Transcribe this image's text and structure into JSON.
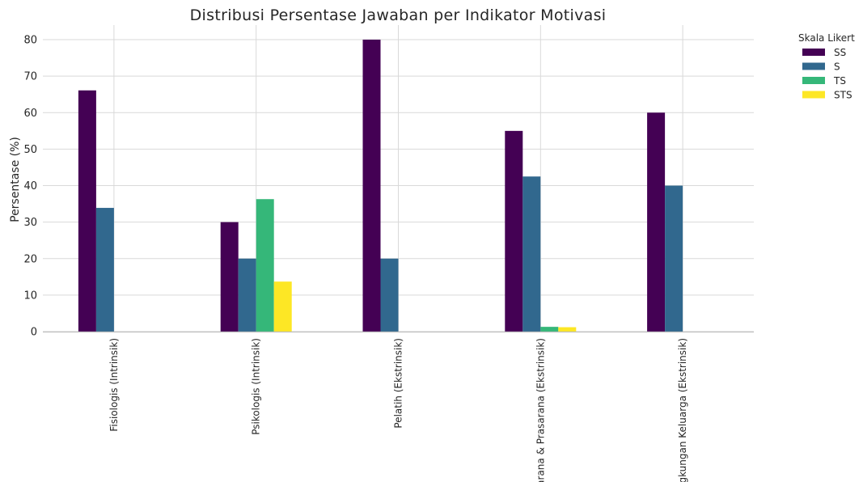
{
  "chart_data": {
    "type": "bar",
    "title": "Distribusi Persentase Jawaban per Indikator Motivasi",
    "xlabel": "",
    "ylabel": "Persentase (%)",
    "ylim": [
      0,
      84
    ],
    "yticks": [
      0,
      10,
      20,
      30,
      40,
      50,
      60,
      70,
      80
    ],
    "grid": true,
    "categories": [
      "Fisiologis (Intrinsik)",
      "Psikologis (Intrinsik)",
      "Pelatih (Ekstrinsik)",
      "Sarana & Prasarana (Ekstrinsik)",
      "Lingkungan Keluarga (Ekstrinsik)"
    ],
    "legend": {
      "title": "Skala Likert",
      "placement": "outside-top-right"
    },
    "series": [
      {
        "name": "SS",
        "color": "#440154",
        "values": [
          66.1,
          30.0,
          80.0,
          55.0,
          60.0
        ]
      },
      {
        "name": "S",
        "color": "#31688e",
        "values": [
          33.9,
          20.0,
          20.0,
          42.5,
          40.0
        ]
      },
      {
        "name": "TS",
        "color": "#35b779",
        "values": [
          0,
          36.3,
          0,
          1.3,
          0
        ]
      },
      {
        "name": "STS",
        "color": "#fde725",
        "values": [
          0,
          13.7,
          0,
          1.2,
          0
        ]
      }
    ]
  }
}
